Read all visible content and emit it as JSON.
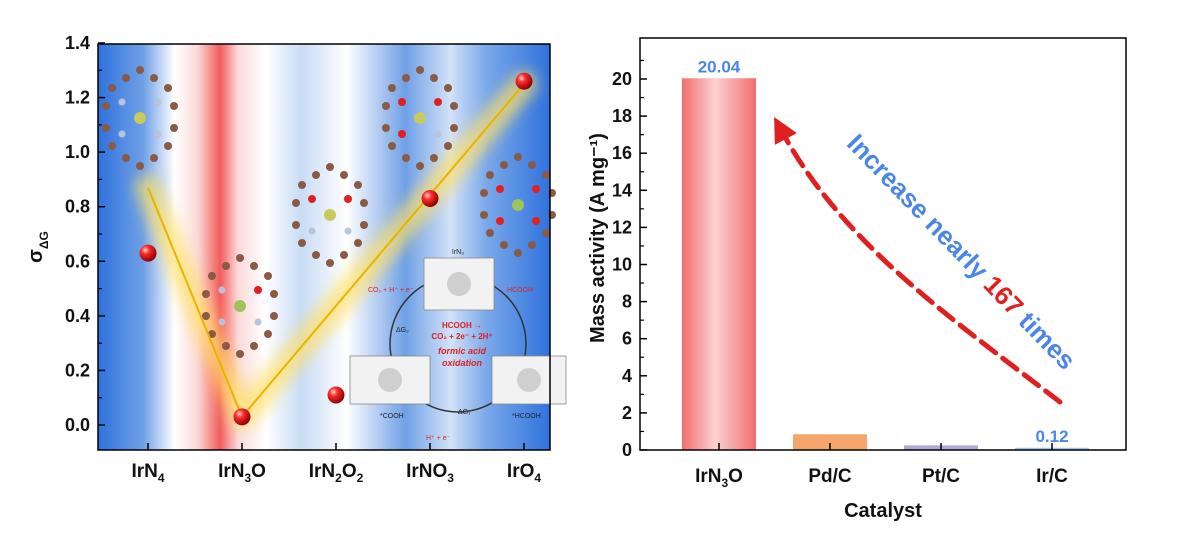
{
  "chart_data": [
    {
      "type": "scatter",
      "ylabel": "σ",
      "ylabel_sub": "ΔG",
      "ylim": [
        0,
        1.4
      ],
      "yticks": [
        "0.0",
        "0.2",
        "0.4",
        "0.6",
        "0.8",
        "1.0",
        "1.2",
        "1.4"
      ],
      "categories": [
        {
          "base": "IrN",
          "sub1": "4",
          "mid": "",
          "sub2": ""
        },
        {
          "base": "IrN",
          "sub1": "3",
          "mid": "O",
          "sub2": ""
        },
        {
          "base": "IrN",
          "sub1": "2",
          "mid": "O",
          "sub2": "2"
        },
        {
          "base": "IrNO",
          "sub1": "3",
          "mid": "",
          "sub2": ""
        },
        {
          "base": "IrO",
          "sub1": "4",
          "mid": "",
          "sub2": ""
        }
      ],
      "values": [
        0.63,
        0.03,
        0.11,
        0.83,
        1.26
      ],
      "trend_line": {
        "x": [
          0,
          1,
          4
        ],
        "y": [
          0.87,
          0.03,
          1.25
        ]
      },
      "marker_color": "#e01010",
      "inset": {
        "top_label": "IrN₃",
        "reaction": [
          "HCOOH →",
          "CO₂ + 2e⁻ + 2H⁺"
        ],
        "title_lines": [
          "formic acid",
          "oxidation"
        ],
        "left_top": "CO₂ + H⁺ + e⁻",
        "right_top": "HCOOH",
        "left_mid": "ΔG₂",
        "bottom_mid": "ΔG₁",
        "bottom_left": "H⁺ + e⁻",
        "left_bottom": "*COOH",
        "right_bottom": "*HCOOH"
      }
    },
    {
      "type": "bar",
      "xlabel": "Catalyst",
      "ylabel": "Mass activity (A mg⁻¹)",
      "ylim": [
        0,
        22
      ],
      "yticks": [
        "0",
        "2",
        "4",
        "6",
        "8",
        "10",
        "12",
        "14",
        "16",
        "18",
        "20"
      ],
      "categories": [
        {
          "base": "IrN",
          "sub1": "3",
          "mid": "O"
        },
        {
          "base": "Pd/C",
          "sub1": "",
          "mid": ""
        },
        {
          "base": "Pt/C",
          "sub1": "",
          "mid": ""
        },
        {
          "base": "Ir/C",
          "sub1": "",
          "mid": ""
        }
      ],
      "values": [
        20.04,
        0.85,
        0.25,
        0.12
      ],
      "value_labels": [
        "20.04",
        "",
        "",
        "0.12"
      ],
      "bar_colors": [
        "#f0777a",
        "#f6a56c",
        "#b4a7d6",
        "#9fc5e8"
      ],
      "annotation": {
        "prefix": "Increase nearly ",
        "number": "167",
        "suffix": " times"
      },
      "label_color": "#4a86e8",
      "arrow_color": "#e02020"
    }
  ]
}
